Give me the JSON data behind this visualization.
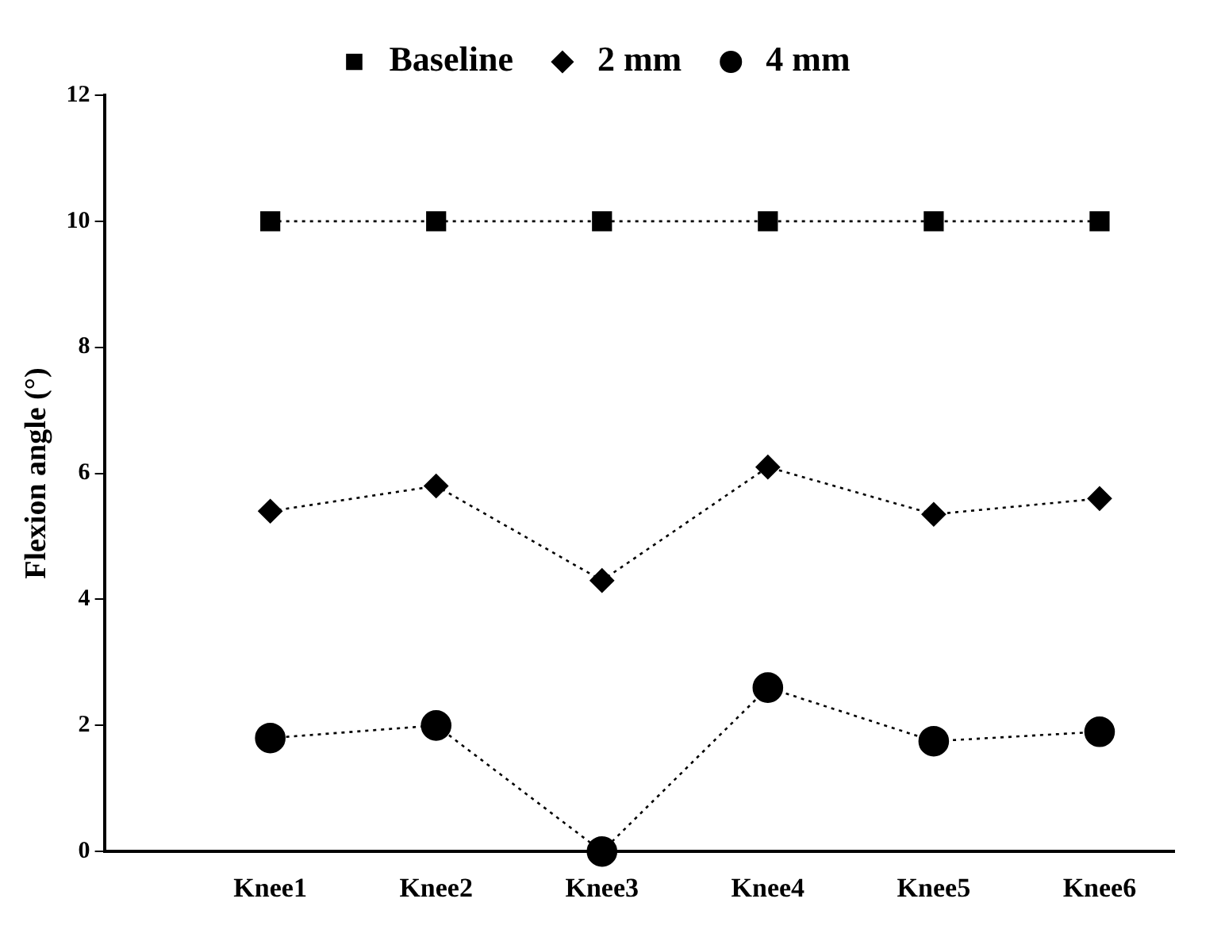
{
  "chart_data": {
    "type": "line",
    "ylabel": "Flexion angle (°)",
    "categories": [
      "Knee1",
      "Knee2",
      "Knee3",
      "Knee4",
      "Knee5",
      "Knee6"
    ],
    "series": [
      {
        "name": "Baseline",
        "color": "#000000",
        "marker": "square",
        "values": [
          10,
          10,
          10,
          10,
          10,
          10
        ]
      },
      {
        "name": "2 mm",
        "color": "#000000",
        "marker": "diamond",
        "values": [
          5.4,
          5.8,
          4.3,
          6.1,
          5.35,
          5.6
        ]
      },
      {
        "name": "4 mm",
        "color": "#000000",
        "marker": "circle",
        "values": [
          1.8,
          2.0,
          0,
          2.6,
          1.75,
          1.9
        ]
      }
    ],
    "ylim": [
      0,
      12
    ],
    "yticks": [
      0,
      2,
      4,
      6,
      8,
      10,
      12
    ],
    "grid": false,
    "legend": "top",
    "line_style": "dotted"
  }
}
